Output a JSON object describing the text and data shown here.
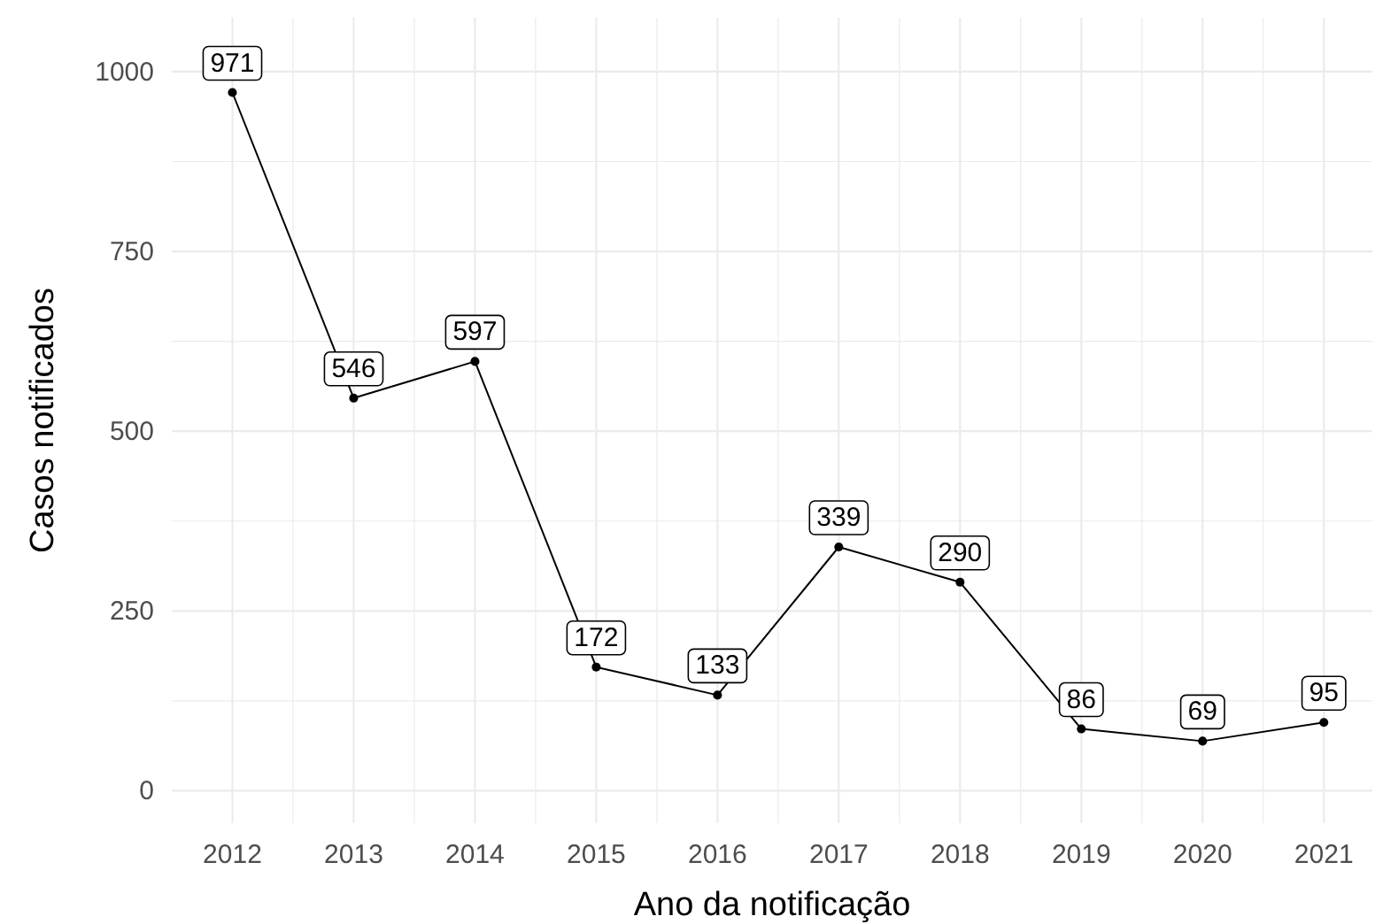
{
  "chart_data": {
    "type": "line",
    "xlabel": "Ano da notificação",
    "ylabel": "Casos notificados",
    "x": [
      2012,
      2013,
      2014,
      2015,
      2016,
      2017,
      2018,
      2019,
      2020,
      2021
    ],
    "series": [
      {
        "color": "#000000",
        "values": [
          971,
          546,
          597,
          172,
          133,
          339,
          290,
          86,
          69,
          95
        ]
      }
    ],
    "xlim": [
      2011.5,
      2021.4
    ],
    "ylim": [
      -45,
      1075
    ],
    "xticks": [
      2012,
      {
        "value": 2012.5,
        "label": null
      },
      2013,
      {
        "value": 2013.5,
        "label": null
      },
      2014,
      {
        "value": 2014.5,
        "label": null
      },
      2015,
      {
        "value": 2015.5,
        "label": null
      },
      2016,
      {
        "value": 2016.5,
        "label": null
      },
      2017,
      {
        "value": 2017.5,
        "label": null
      },
      2018,
      {
        "value": 2018.5,
        "label": null
      },
      2019,
      {
        "value": 2019.5,
        "label": null
      },
      2020,
      {
        "value": 2020.5,
        "label": null
      },
      2021
    ],
    "yticks": [
      0,
      {
        "value": 125,
        "label": null
      },
      250,
      {
        "value": 375,
        "label": null
      },
      500,
      {
        "value": 625,
        "label": null
      },
      750,
      {
        "value": 875,
        "label": null
      },
      1000
    ],
    "grid": true,
    "marker": "circle",
    "line_style": "solid",
    "data_labels": true
  }
}
